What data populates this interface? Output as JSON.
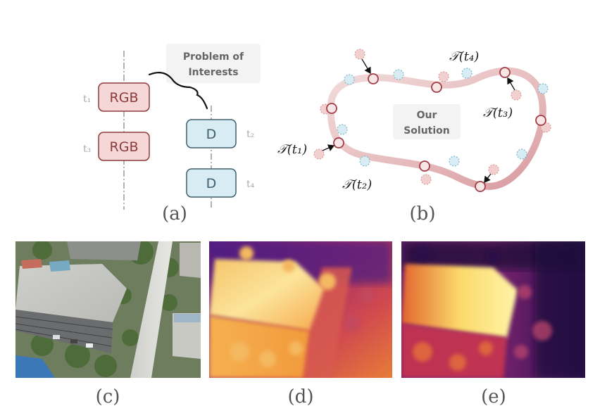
{
  "panel_a": {
    "caption": "(a)",
    "time_labels": [
      "t₁",
      "t₃",
      "t₂",
      "t₄"
    ],
    "rgb_label": "RGB",
    "depth_label": "D",
    "problem_line1": "Problem of",
    "problem_line2": "Interests"
  },
  "panel_b": {
    "caption": "(b)",
    "solution_line1": "Our",
    "solution_line2": "Solution",
    "traj_labels": {
      "t1": "𝒯(t₁)",
      "t2": "𝒯(t₂)",
      "t3": "𝒯(t₃)",
      "t4": "𝒯(t₄)"
    }
  },
  "captions": {
    "c": "(c)",
    "d": "(d)",
    "e": "(e)"
  },
  "colors": {
    "rgb_fill": "#f6d7d7",
    "rgb_stroke": "#8c3b3b",
    "rgb_text": "#8c3b3b",
    "d_fill": "#d7ecf3",
    "d_stroke": "#3e5f6d",
    "d_text": "#3e5f6d",
    "trajectory": "#dcaeae",
    "pose_ring": "#a43d46"
  }
}
